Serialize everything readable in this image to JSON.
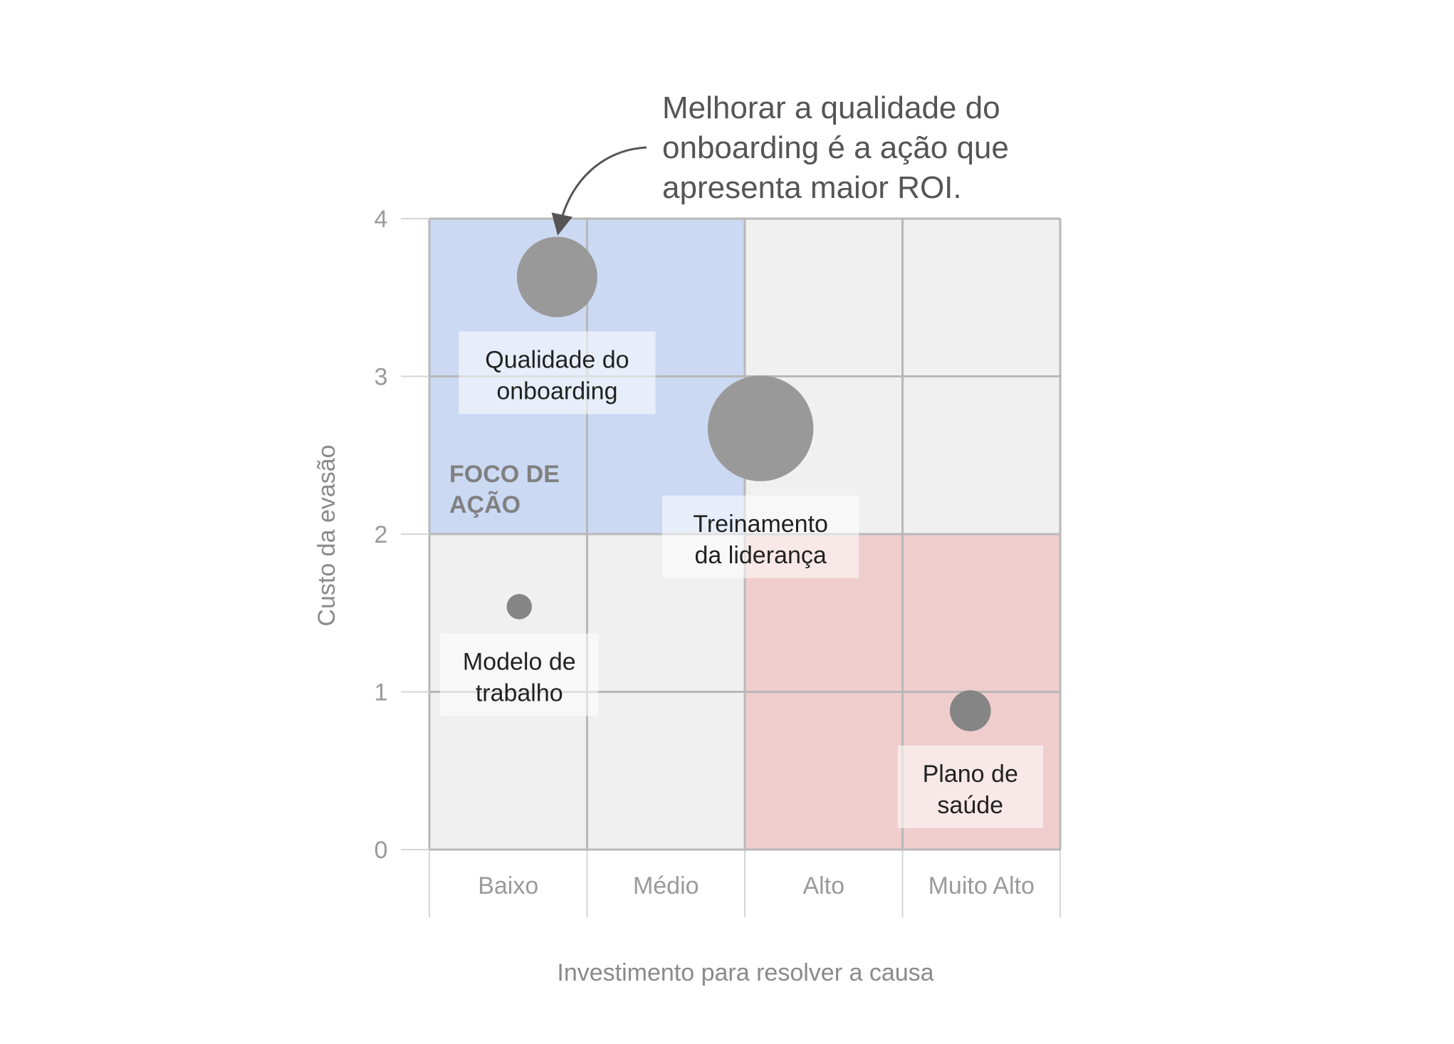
{
  "annotation": {
    "lines": [
      "Melhorar a qualidade do",
      "onboarding é a ação que",
      "apresenta maior ROI."
    ]
  },
  "colors": {
    "background": "#ffffff",
    "cell_neutral": "#f0f0f0",
    "cell_focus": "#cbd9f3",
    "cell_risk": "#f0cdcd",
    "grid_line": "#b8b8b8",
    "tick_text": "#9a9a9a",
    "axis_title_text": "#8a8a8a",
    "bubble_large": "#999999",
    "bubble_small": "#858585",
    "label_box": "#ffffff",
    "label_text": "#222222",
    "focus_text": "#808080",
    "annotation_text": "#555555"
  },
  "chart_data": {
    "type": "scatter",
    "title": "",
    "xlabel": "Investimento para resolver a causa",
    "ylabel": "Custo da evasão",
    "x_categories": [
      "Baixo",
      "Médio",
      "Alto",
      "Muito Alto"
    ],
    "xlim": [
      0,
      4
    ],
    "ylim": [
      0,
      4
    ],
    "y_ticks": [
      "0",
      "1",
      "2",
      "3",
      "4"
    ],
    "grid": true,
    "regions": [
      {
        "name": "focus",
        "label": [
          "FOCO DE",
          "AÇÃO"
        ],
        "x": [
          0,
          2
        ],
        "y": [
          2,
          4
        ],
        "color": "#cbd9f3"
      },
      {
        "name": "risk",
        "label": [],
        "x": [
          2,
          4
        ],
        "y": [
          0,
          2
        ],
        "color": "#f0cdcd"
      }
    ],
    "points": [
      {
        "label": [
          "Qualidade do",
          "onboarding"
        ],
        "x": 0.81,
        "y": 3.63,
        "size": 0.51
      },
      {
        "label": [
          "Treinamento",
          "da liderança"
        ],
        "x": 2.1,
        "y": 2.67,
        "size": 0.67
      },
      {
        "label": [
          "Modelo de",
          "trabalho"
        ],
        "x": 0.57,
        "y": 1.54,
        "size": 0.16
      },
      {
        "label": [
          "Plano de",
          "saúde"
        ],
        "x": 3.43,
        "y": 0.88,
        "size": 0.26
      }
    ]
  }
}
